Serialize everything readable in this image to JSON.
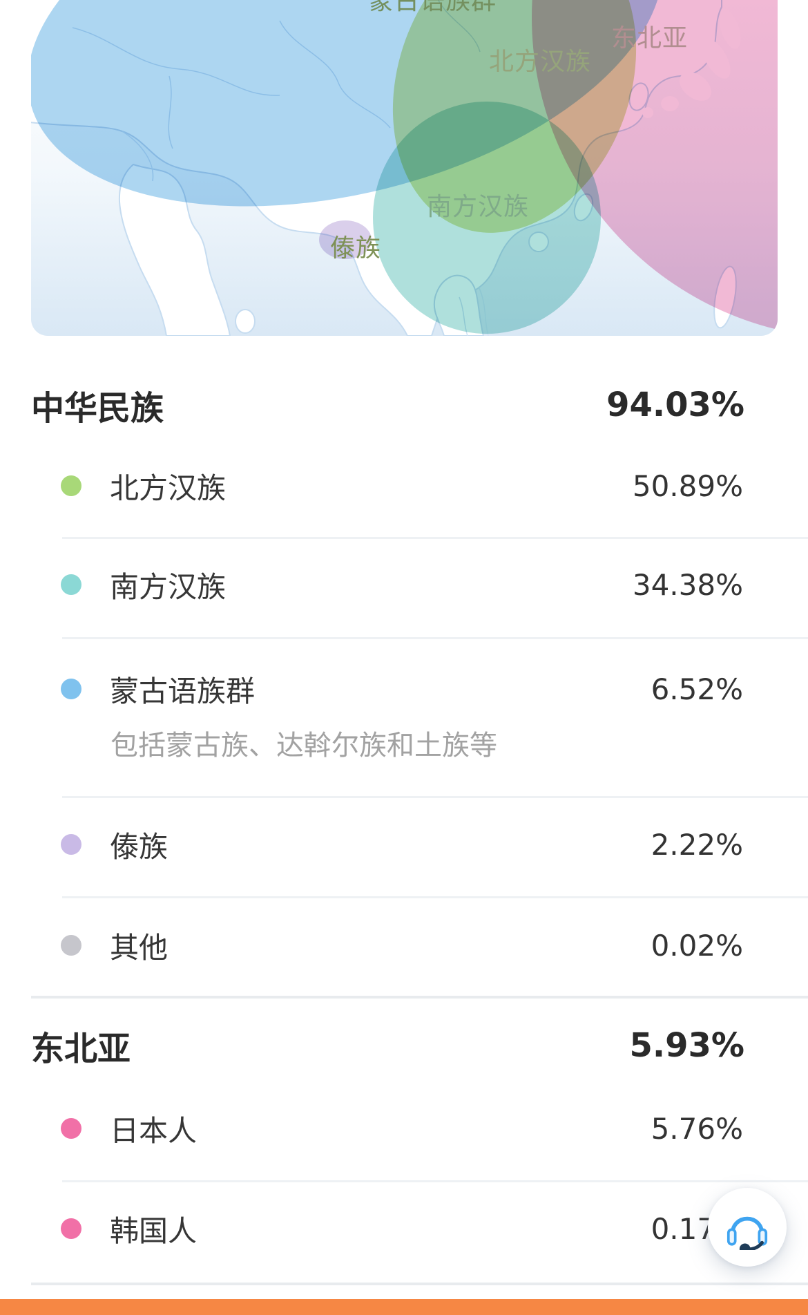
{
  "map": {
    "labels": [
      {
        "text": "蒙古语族群",
        "color": "#74905F"
      },
      {
        "text": "北方汉族",
        "color": "#95A47B"
      },
      {
        "text": "东北亚",
        "color": "#B18E90"
      },
      {
        "text": "南方汉族",
        "color": "#7FAA89"
      },
      {
        "text": "傣族",
        "color": "#7E9156"
      }
    ],
    "regions": [
      {
        "name": "mongolic",
        "color": "rgba(122,189,233,0.62)"
      },
      {
        "name": "northern-han",
        "color": "rgba(187,214,96,0.55)"
      },
      {
        "name": "northeast-asia",
        "color": "rgba(233,142,188,0.62)"
      },
      {
        "name": "southern-han",
        "color": "rgba(96,193,186,0.50)"
      },
      {
        "name": "dai",
        "color": "rgba(172,148,210,0.45)"
      }
    ]
  },
  "sections": [
    {
      "title": "中华民族",
      "total": "94.03%",
      "rows": [
        {
          "label": "北方汉族",
          "value": "50.89%",
          "color": "#A8D878"
        },
        {
          "label": "南方汉族",
          "value": "34.38%",
          "color": "#8BD8D5"
        },
        {
          "label": "蒙古语族群",
          "value": "6.52%",
          "color": "#7FC2EE",
          "note": "包括蒙古族、达斡尔族和土族等"
        },
        {
          "label": "傣族",
          "value": "2.22%",
          "color": "#C9BAE6"
        },
        {
          "label": "其他",
          "value": "0.02%",
          "color": "#C6C6CC"
        }
      ]
    },
    {
      "title": "东北亚",
      "total": "5.93%",
      "rows": [
        {
          "label": "日本人",
          "value": "5.76%",
          "color": "#F170A7"
        },
        {
          "label": "韩国人",
          "value": "0.17%",
          "color": "#F170A7"
        }
      ]
    }
  ],
  "floating_button": {
    "icon": "headset-icon",
    "headset_color": "#3FA4F0",
    "mic_color": "#1F3C58"
  },
  "bottom_bar": {
    "color": "#F68744"
  }
}
